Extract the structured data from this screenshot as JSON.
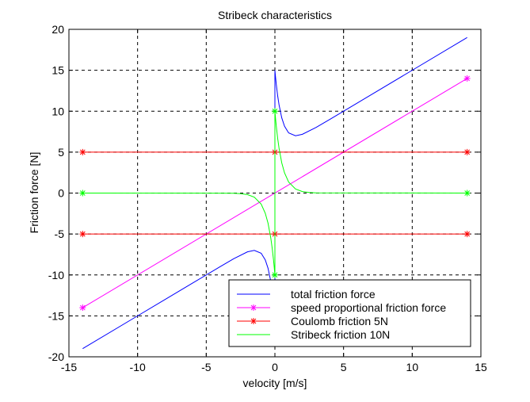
{
  "chart_data": {
    "type": "line",
    "title": "Stribeck characteristics",
    "xlabel": "velocity [m/s]",
    "ylabel": "Friction force [N]",
    "xlim": [
      -15,
      15
    ],
    "ylim": [
      -20,
      20
    ],
    "xticks": [
      -15,
      -10,
      -5,
      0,
      5,
      10,
      15
    ],
    "yticks": [
      -20,
      -15,
      -10,
      -5,
      0,
      5,
      10,
      15,
      20
    ],
    "grid": true,
    "legend_position": "bottom-right",
    "series": [
      {
        "name": "total friction force",
        "color": "#0000ff",
        "marker": "none",
        "x": [
          -14,
          -10,
          -6,
          -4,
          -3,
          -2,
          -1.5,
          -1,
          -0.7,
          -0.5,
          -0.3,
          -0.2,
          -0.1,
          -0.05,
          -0.01,
          0,
          0,
          0.01,
          0.05,
          0.1,
          0.2,
          0.3,
          0.5,
          0.7,
          1,
          1.5,
          2,
          3,
          4,
          6,
          10,
          14
        ],
        "y": [
          -19,
          -15,
          -11,
          -9,
          -8.02,
          -7.18,
          -7.0,
          -7.35,
          -8.17,
          -9.18,
          -10.79,
          -11.9,
          -13.29,
          -14.1,
          -14.81,
          -15,
          15,
          14.81,
          14.1,
          13.29,
          11.9,
          10.79,
          9.18,
          8.17,
          7.35,
          7.0,
          7.18,
          8.02,
          9,
          11,
          15,
          19
        ]
      },
      {
        "name": "speed proportional friction force",
        "color": "#ff00ff",
        "marker": "*",
        "x": [
          -14,
          14
        ],
        "y": [
          -14,
          14
        ],
        "marker_x": [
          -14,
          14
        ],
        "marker_y": [
          -14,
          14
        ]
      },
      {
        "name": "Coulomb friction 5N",
        "color": "#ff0000",
        "marker": "*",
        "segments": [
          {
            "x": [
              -14,
              14
            ],
            "y": [
              5,
              5
            ]
          },
          {
            "x": [
              -14,
              14
            ],
            "y": [
              -5,
              -5
            ]
          }
        ],
        "marker_x": [
          -14,
          0,
          14,
          -14,
          0,
          14
        ],
        "marker_y": [
          5,
          5,
          5,
          -5,
          -5,
          -5
        ]
      },
      {
        "name": "Stribeck friction 10N",
        "color": "#00ff00",
        "marker": "none",
        "x": [
          -14,
          -3,
          -2.5,
          -2,
          -1.5,
          -1,
          -0.7,
          -0.5,
          -0.3,
          -0.2,
          -0.1,
          -0.05,
          -0.01,
          0,
          0,
          0.01,
          0.05,
          0.1,
          0.2,
          0.3,
          0.5,
          0.7,
          1,
          1.5,
          2,
          2.5,
          3,
          14
        ],
        "y": [
          0,
          -0.02,
          -0.07,
          -0.18,
          -0.5,
          -1.35,
          -2.47,
          -3.68,
          -5.49,
          -6.7,
          -8.19,
          -9.05,
          -9.8,
          -10,
          10,
          9.8,
          9.05,
          8.19,
          6.7,
          5.49,
          3.68,
          2.47,
          1.35,
          0.5,
          0.18,
          0.07,
          0.02,
          0
        ],
        "marker_x": [
          0,
          0,
          -14,
          14
        ],
        "marker_y": [
          10,
          -10,
          0,
          0
        ]
      }
    ]
  }
}
